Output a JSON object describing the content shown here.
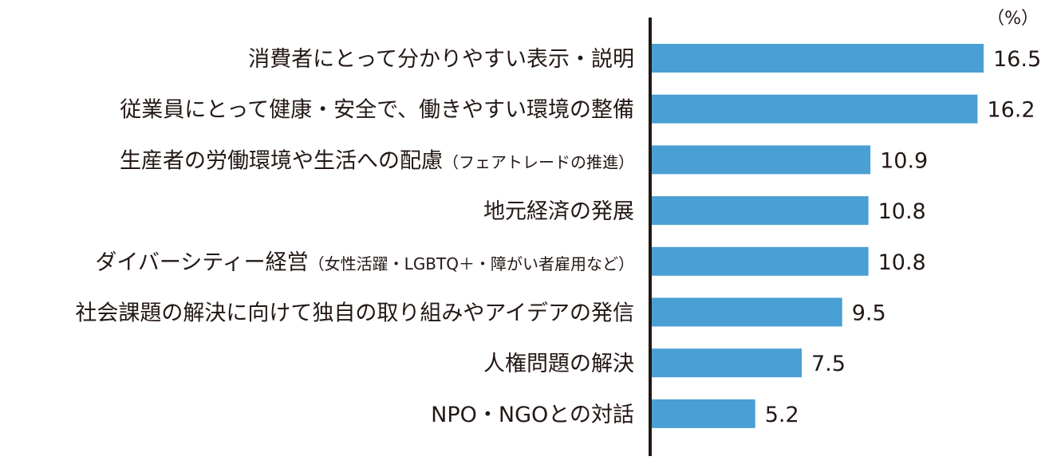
{
  "chart_data": {
    "type": "bar",
    "orientation": "horizontal",
    "unit": "（%）",
    "categories": [
      {
        "main": "消費者にとって分かりやすい表示・説明",
        "note": ""
      },
      {
        "main": "従業員にとって健康・安全で、働きやすい環境の整備",
        "note": ""
      },
      {
        "main": "生産者の労働環境や生活への配慮",
        "note": "（フェアトレードの推進）"
      },
      {
        "main": "地元経済の発展",
        "note": ""
      },
      {
        "main": "ダイバーシティー経営",
        "note": "（女性活躍・LGBTQ＋・障がい者雇用など）"
      },
      {
        "main": "社会課題の解決に向けて独自の取り組みやアイデアの発信",
        "note": ""
      },
      {
        "main": "人権問題の解決",
        "note": ""
      },
      {
        "main": "NPO・NGOとの対話",
        "note": ""
      }
    ],
    "values": [
      16.5,
      16.2,
      10.9,
      10.8,
      10.8,
      9.5,
      7.5,
      5.2
    ],
    "value_labels": [
      "16.5",
      "16.2",
      "10.9",
      "10.8",
      "10.8",
      "9.5",
      "7.5",
      "5.2"
    ],
    "bar_color": "#4a9fd4",
    "axis_color": "#231815",
    "grid": false,
    "legend": "none"
  }
}
